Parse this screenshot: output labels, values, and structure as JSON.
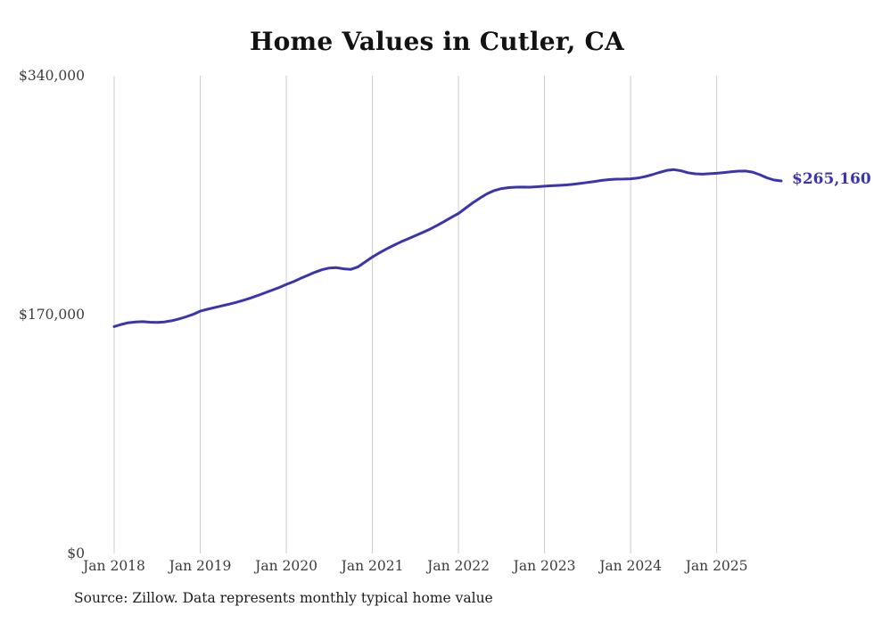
{
  "chart_data": {
    "type": "line",
    "title": "Home Values in Cutler, CA",
    "series_name": "Monthly typical home value",
    "x_range": {
      "first": "2018-01",
      "last": "2025-10",
      "frequency": "monthly"
    },
    "x_tick_labels": [
      "Jan 2018",
      "Jan 2019",
      "Jan 2020",
      "Jan 2021",
      "Jan 2022",
      "Jan 2023",
      "Jan 2024",
      "Jan 2025"
    ],
    "y_tick_labels": [
      "$0",
      "$170,000",
      "$340,000"
    ],
    "y_ticks": [
      0,
      170000,
      340000
    ],
    "ylim": [
      0,
      340000
    ],
    "grid": "vertical-only",
    "legend": "none",
    "end_label": "$265,160",
    "end_value": 265160,
    "line_color": "#3b35ad",
    "grid_color": "#cccccc",
    "values": [
      161500,
      163000,
      164200,
      164800,
      165000,
      164600,
      164400,
      164800,
      165600,
      166900,
      168400,
      170200,
      172500,
      173800,
      175000,
      176200,
      177400,
      178700,
      180200,
      181800,
      183600,
      185500,
      187400,
      189300,
      191500,
      193500,
      195800,
      198000,
      200200,
      202000,
      203200,
      203400,
      202600,
      202200,
      204000,
      207500,
      211000,
      214000,
      216800,
      219400,
      221800,
      224000,
      226200,
      228400,
      230800,
      233400,
      236200,
      239200,
      242000,
      245800,
      249600,
      253000,
      256000,
      258300,
      259700,
      260400,
      260700,
      260800,
      260700,
      261000,
      261400,
      261700,
      262000,
      262300,
      262800,
      263400,
      264100,
      264800,
      265500,
      266100,
      266400,
      266500,
      266700,
      267200,
      268200,
      269600,
      271200,
      272600,
      273200,
      272400,
      271000,
      270200,
      270000,
      270300,
      270600,
      271100,
      271700,
      272100,
      272200,
      271400,
      269600,
      267400,
      265800,
      265160
    ]
  },
  "footer": {
    "source": "Source: Zillow. Data represents monthly typical home value"
  }
}
